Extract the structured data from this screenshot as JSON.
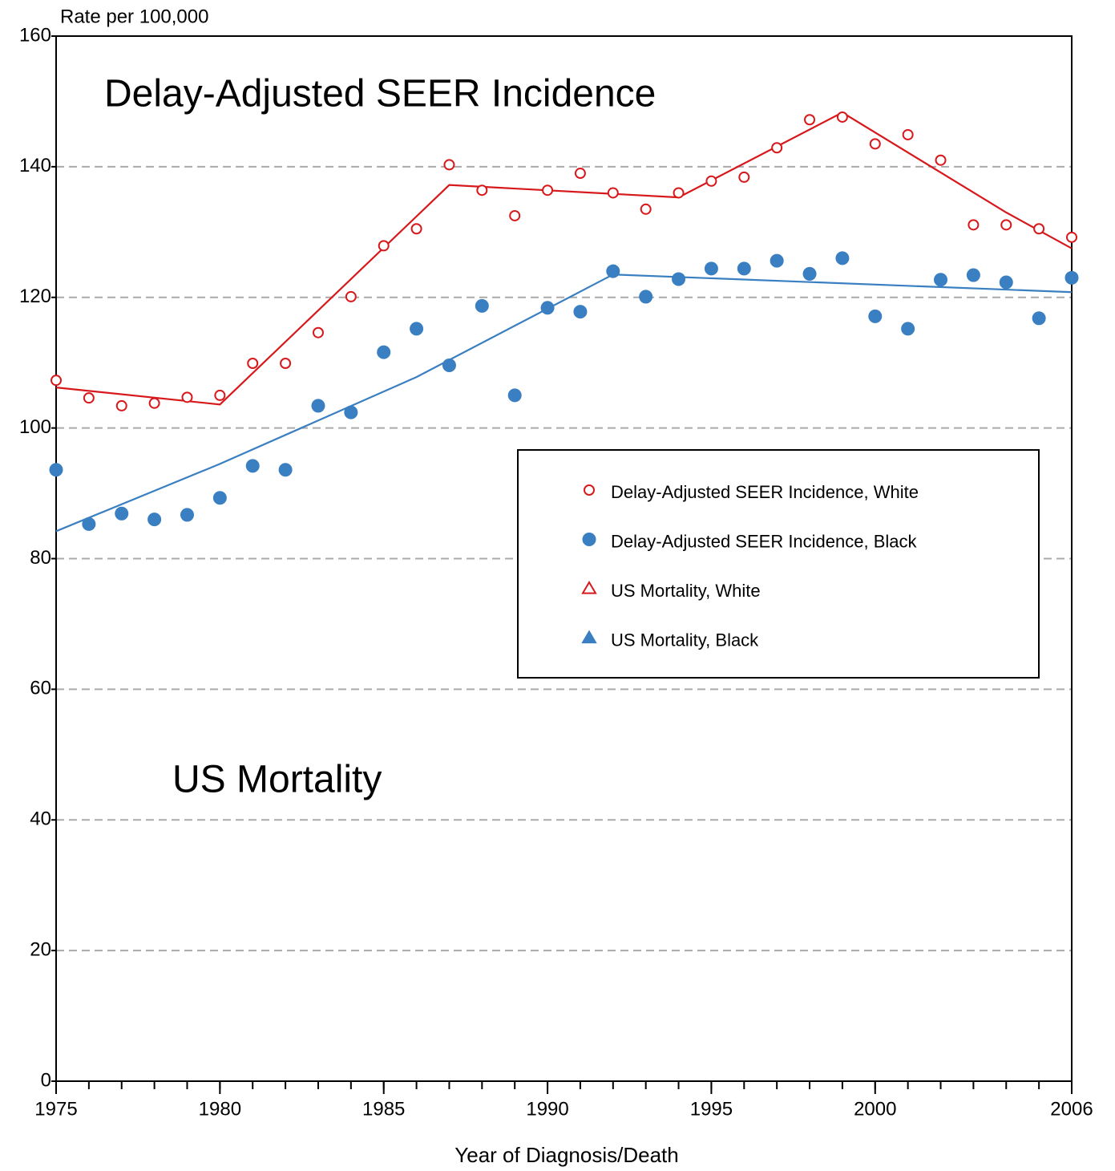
{
  "chart_data": {
    "type": "scatter",
    "y_axis_label": "Rate per 100,000",
    "x_axis_label": "Year of Diagnosis/Death",
    "annotations": [
      "Delay-Adjusted SEER Incidence",
      "US Mortality"
    ],
    "x": [
      1975,
      1976,
      1977,
      1978,
      1979,
      1980,
      1981,
      1982,
      1983,
      1984,
      1985,
      1986,
      1987,
      1988,
      1989,
      1990,
      1991,
      1992,
      1993,
      1994,
      1995,
      1996,
      1997,
      1998,
      1999,
      2000,
      2001,
      2002,
      2003,
      2004,
      2005,
      2006
    ],
    "series": [
      {
        "name": "Delay-Adjusted SEER Incidence, White",
        "color": "#d7191c",
        "marker": "open-circle",
        "values": [
          107.3,
          104.6,
          103.4,
          103.8,
          104.7,
          105.0,
          109.9,
          109.9,
          114.6,
          120.1,
          127.9,
          130.5,
          140.3,
          136.4,
          132.5,
          136.4,
          139.0,
          136.0,
          133.5,
          136.0,
          137.8,
          138.4,
          142.9,
          147.2,
          147.6,
          143.5,
          144.9,
          141.0,
          131.1,
          131.1,
          130.5,
          129.2
        ]
      },
      {
        "name": "Delay-Adjusted SEER Incidence, Black",
        "color": "#3a7fc1",
        "marker": "filled-circle",
        "values": [
          93.6,
          85.3,
          86.9,
          86.0,
          86.7,
          89.3,
          94.2,
          93.6,
          103.4,
          102.4,
          111.6,
          115.2,
          109.6,
          118.7,
          105.0,
          118.4,
          117.8,
          124.0,
          120.1,
          122.8,
          124.4,
          124.4,
          125.6,
          123.6,
          126.0,
          117.1,
          115.2,
          122.7,
          123.4,
          122.3,
          116.8,
          123.0
        ]
      },
      {
        "name": "US Mortality, White",
        "color": "#d7191c",
        "marker": "open-triangle",
        "values": [
          null,
          null,
          null,
          null,
          null,
          null,
          null,
          null,
          null,
          null,
          null,
          null,
          null,
          null,
          null,
          null,
          null,
          null,
          null,
          null,
          null,
          null,
          null,
          null,
          null,
          null,
          null,
          null,
          null,
          null,
          null,
          null
        ]
      },
      {
        "name": "US Mortality, Black",
        "color": "#3a7fc1",
        "marker": "filled-triangle",
        "values": [
          null,
          null,
          null,
          null,
          null,
          null,
          null,
          null,
          null,
          null,
          null,
          null,
          null,
          null,
          null,
          null,
          null,
          null,
          null,
          null,
          null,
          null,
          null,
          null,
          null,
          null,
          null,
          null,
          null,
          null,
          null,
          null
        ]
      }
    ],
    "trend_lines": [
      {
        "color": "#d7191c",
        "x": [
          1975,
          1980,
          1987,
          1994,
          1999,
          2004,
          2006
        ],
        "values": [
          106.2,
          103.6,
          137.2,
          135.3,
          148.3,
          133.0,
          127.5
        ]
      },
      {
        "color": "#3a7fc1",
        "x": [
          1975,
          1980,
          1986,
          1992,
          2006
        ],
        "values": [
          84.2,
          94.5,
          107.8,
          123.5,
          120.8
        ]
      }
    ],
    "xlim": [
      1975,
      2006
    ],
    "xticks": [
      1975,
      1980,
      1985,
      1990,
      1995,
      2000,
      2006
    ],
    "ylim": [
      0,
      160
    ],
    "yticks": [
      0,
      20,
      40,
      60,
      80,
      100,
      120,
      140,
      160
    ],
    "grid": true
  }
}
